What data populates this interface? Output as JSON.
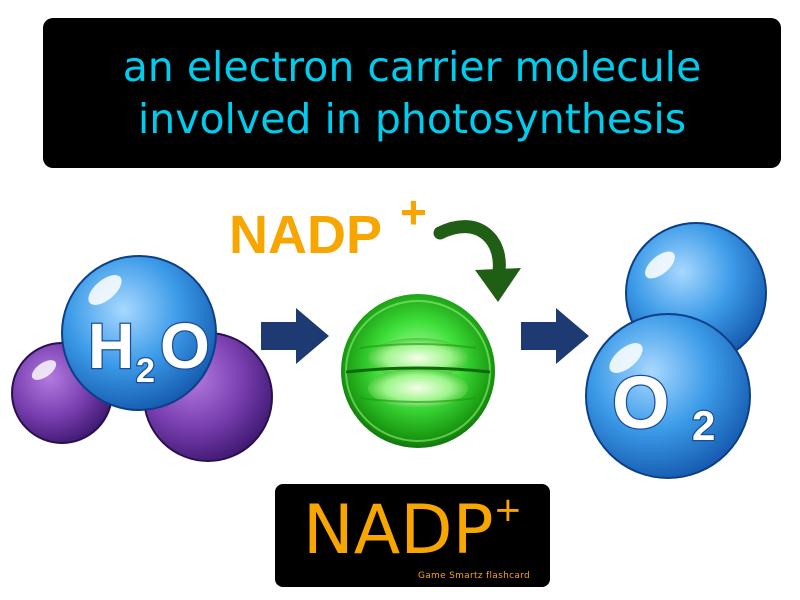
{
  "definition": {
    "line1": "an electron carrier molecule",
    "line2": "involved in photosynthesis"
  },
  "diagram": {
    "reactant": {
      "main": "H",
      "sub": "2",
      "rest": "O"
    },
    "carrier_label": {
      "main": "NADP",
      "sup": "+"
    },
    "product": {
      "main": "O",
      "sub": "2"
    }
  },
  "term": {
    "main": "NADP",
    "sup": "+"
  },
  "credit": "Game Smartz flashcard",
  "colors": {
    "definition_text": "#00ccee",
    "term_text": "#f7a600",
    "arrow": "#1e3a73",
    "curved_arrow": "#1f5e14",
    "oxygen_blue": "#2f8fe0",
    "hydrogen_purple": "#7a3fb0",
    "cell_green": "#33e833"
  }
}
